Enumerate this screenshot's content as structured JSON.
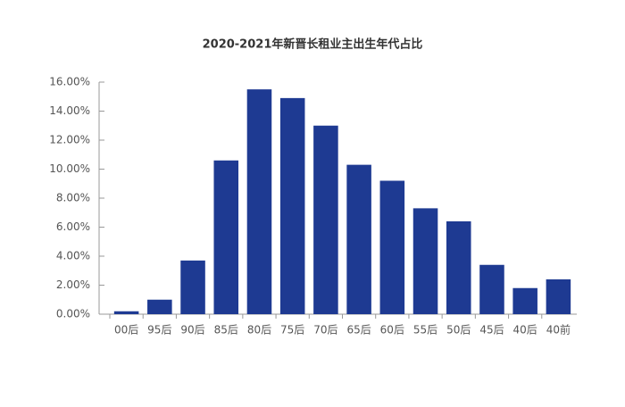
{
  "chart_data": {
    "type": "bar",
    "title": "2020-2021年新晋长租业主出生年代占比",
    "categories": [
      "00后",
      "95后",
      "90后",
      "85后",
      "80后",
      "75后",
      "70后",
      "65后",
      "60后",
      "55后",
      "50后",
      "45后",
      "40后",
      "40前"
    ],
    "values": [
      0.2,
      1.0,
      3.7,
      10.6,
      15.5,
      14.9,
      13.0,
      10.3,
      9.2,
      7.3,
      6.4,
      3.4,
      1.8,
      2.4
    ],
    "color": "#1e3a92",
    "ylim": [
      0,
      16
    ],
    "yticks": [
      {
        "value": 0,
        "label": "0.00%"
      },
      {
        "value": 2,
        "label": "2.00%"
      },
      {
        "value": 4,
        "label": "4.00%"
      },
      {
        "value": 6,
        "label": "6.00%"
      },
      {
        "value": 8,
        "label": "8.00%"
      },
      {
        "value": 10,
        "label": "10.00%"
      },
      {
        "value": 12,
        "label": "12.00%"
      },
      {
        "value": 14,
        "label": "14.00%"
      },
      {
        "value": 16,
        "label": "16.00%"
      }
    ]
  }
}
